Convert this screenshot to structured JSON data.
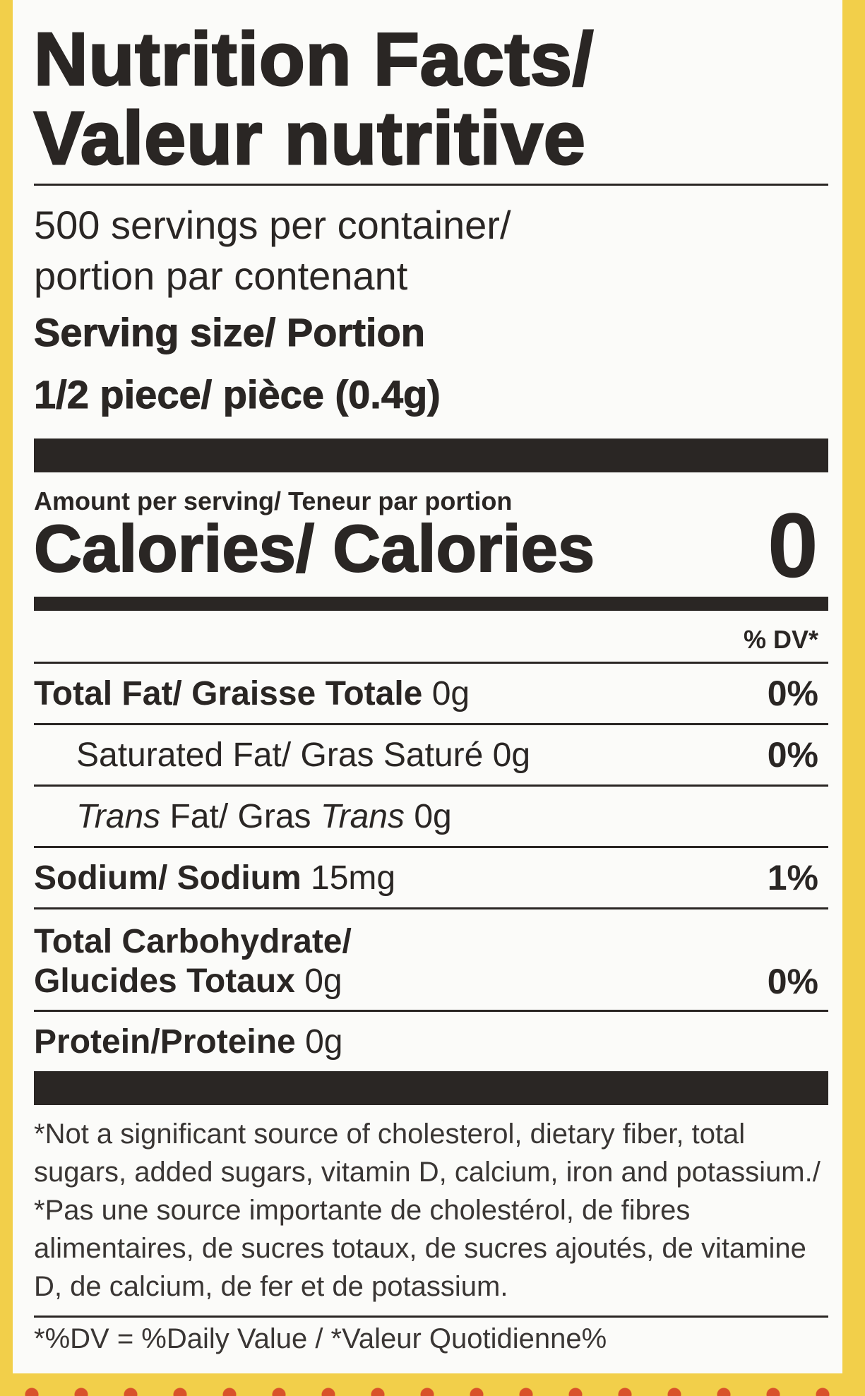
{
  "title": {
    "line1": "Nutrition Facts/",
    "line2": "Valeur nutritive"
  },
  "servings": {
    "line1": "500 servings per container/",
    "line2": "portion par contenant"
  },
  "serving_size": {
    "label": "Serving size/ Portion",
    "value": "1/2 piece/ pièce (0.4g)"
  },
  "amount_per_serving": "Amount per serving/ Teneur par portion",
  "calories": {
    "label": "Calories/ Calories",
    "value": "0"
  },
  "dv_header": "% DV*",
  "nutrients": [
    {
      "label": "Total Fat/ Graisse Totale",
      "amount": "0g",
      "dv": "0%"
    },
    {
      "label": "Saturated Fat/ Gras Saturé",
      "amount": "0g",
      "dv": "0%"
    },
    {
      "label_a": "Trans",
      "label_b": " Fat/ Gras ",
      "label_c": "Trans",
      "amount": "0g"
    },
    {
      "label": "Sodium/ Sodium",
      "amount": "15mg",
      "dv": "1%"
    },
    {
      "label_line1": "Total Carbohydrate/",
      "label_line2": "Glucides Totaux",
      "amount": "0g",
      "dv": "0%"
    },
    {
      "label": "Protein/Proteine",
      "amount": "0g"
    }
  ],
  "footnote": "*Not a significant source of cholesterol, dietary fiber, total sugars, added sugars, vitamin D, calcium, iron and potassium./ *Pas une source importante de cholestérol, de fibres alimentaires, de sucres totaux, de sucres ajoutés, de vitamine D, de calcium, de fer et de potassium.",
  "dv_note": "*%DV = %Daily Value /  *Valeur Quotidienne%",
  "colors": {
    "background": "#f2cf4a",
    "ink": "#2a2624",
    "dots": "#d9522a"
  }
}
